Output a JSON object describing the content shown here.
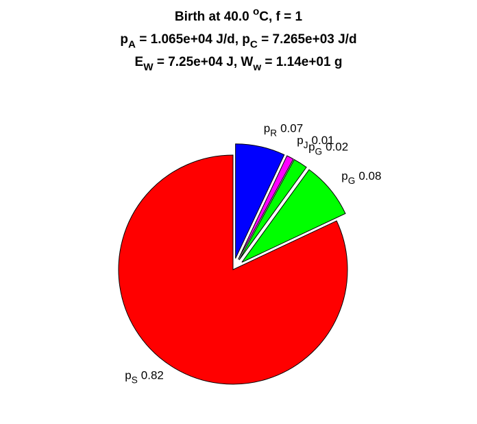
{
  "chart_data": {
    "type": "pie",
    "title": [
      [
        "Birth at 40.0 ",
        {
          "sup": "o"
        },
        "C, f = 1"
      ],
      [
        "p",
        {
          "sub": "A"
        },
        " = 1.065e+04 J/d, p",
        {
          "sub": "C"
        },
        " = 7.265e+03 J/d"
      ],
      [
        "E",
        {
          "sub": "W"
        },
        " = 7.25e+04 J, W",
        {
          "sub": "w"
        },
        " = 1.14e+01 g"
      ]
    ],
    "categories": [
      [
        "p",
        {
          "sub": "R"
        }
      ],
      [
        "p",
        {
          "sub": "J"
        }
      ],
      [
        "p",
        {
          "sub": "G"
        }
      ],
      [
        "p",
        {
          "sub": "G"
        }
      ],
      [
        "p",
        {
          "sub": "S"
        }
      ]
    ],
    "values": [
      0.07,
      0.01,
      0.02,
      0.08,
      0.82
    ],
    "colors": [
      "#0000ff",
      "#ff00ff",
      "#00ff00",
      "#00ff00",
      "#ff0000"
    ],
    "explode": [
      true,
      true,
      true,
      true,
      false
    ]
  }
}
